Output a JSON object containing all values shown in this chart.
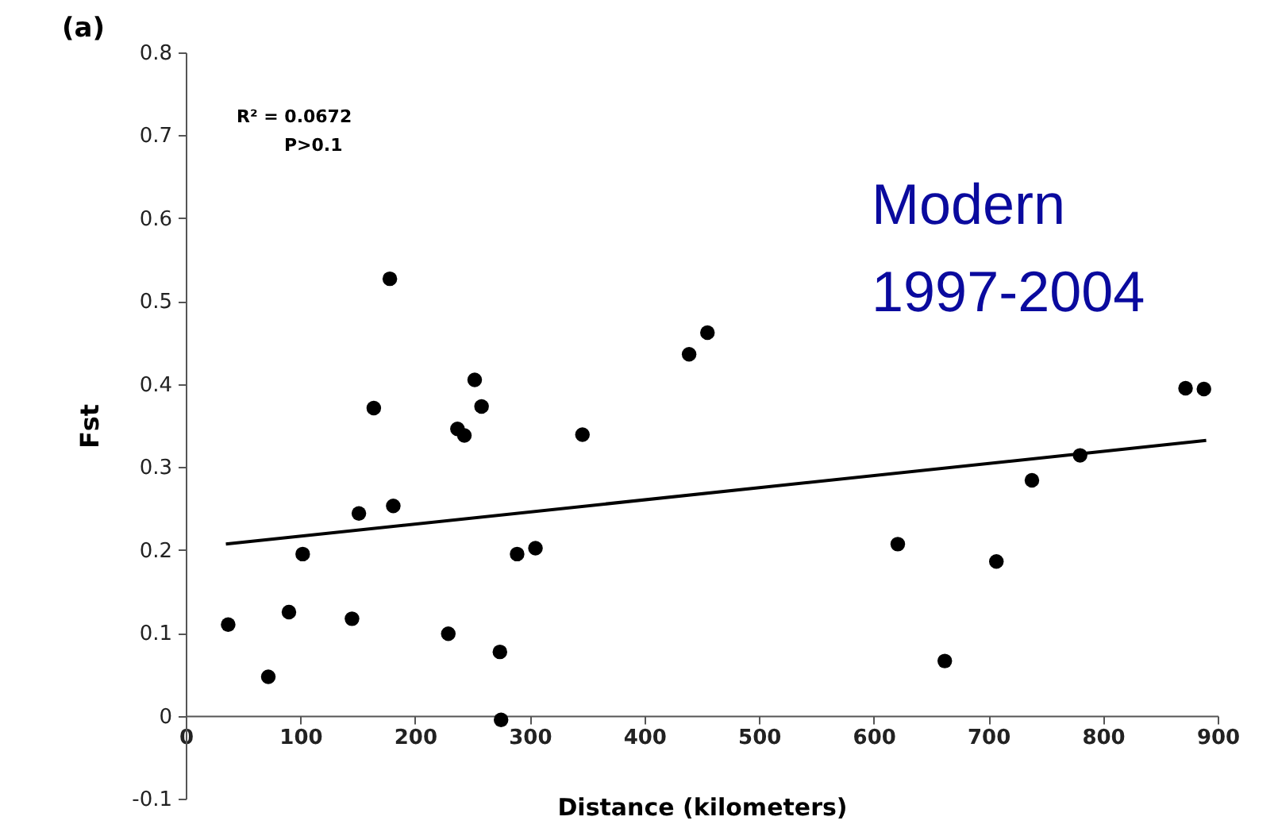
{
  "chart_data": {
    "type": "scatter",
    "title": "(a)",
    "xlabel": "Distance (kilometers)",
    "ylabel": "Fst",
    "annotations": [
      "R² = 0.0672",
      "P>0.1",
      "Modern",
      "1997-2004"
    ],
    "xlim": [
      0,
      900
    ],
    "xticks": [
      0,
      100,
      200,
      300,
      400,
      500,
      600,
      700,
      800,
      900
    ],
    "ylim": [
      -0.1,
      0.8
    ],
    "yticks": [
      -0.1,
      0,
      0.1,
      0.2,
      0.3,
      0.4,
      0.5,
      0.6,
      0.7,
      0.8
    ],
    "grid": false,
    "series": [
      {
        "type": "scatter",
        "marker": "circle",
        "color": "#000000",
        "x": [
          37,
          72,
          90,
          102,
          145,
          151,
          178,
          164,
          181,
          229,
          237,
          243,
          252,
          258,
          274,
          275,
          289,
          305,
          346,
          439,
          455,
          621,
          662,
          707,
          738,
          780,
          872,
          888
        ],
        "values": [
          0.11,
          0.047,
          0.125,
          0.195,
          0.117,
          0.244,
          0.527,
          0.371,
          0.253,
          0.099,
          0.346,
          0.338,
          0.405,
          0.373,
          0.077,
          -0.005,
          0.195,
          0.202,
          0.339,
          0.436,
          0.462,
          0.207,
          0.066,
          0.186,
          0.284,
          0.314,
          0.395,
          0.394
        ]
      },
      {
        "type": "line",
        "color": "#000000",
        "x": [
          35,
          890
        ],
        "values": [
          0.207,
          0.332
        ]
      }
    ]
  }
}
